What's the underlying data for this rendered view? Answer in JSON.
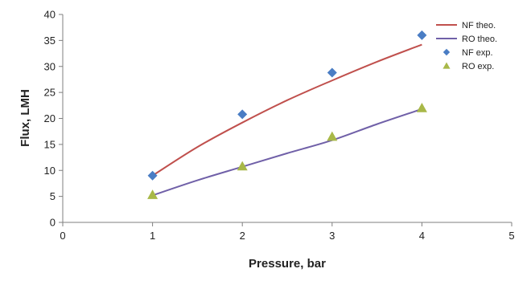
{
  "chart_data": {
    "type": "scatter",
    "xlabel": "Pressure, bar",
    "ylabel": "Flux, LMH",
    "xlim": [
      0,
      5
    ],
    "ylim": [
      0,
      40
    ],
    "xticks": [
      0,
      1,
      2,
      3,
      4,
      5
    ],
    "yticks": [
      0,
      5,
      10,
      15,
      20,
      25,
      30,
      35,
      40
    ],
    "grid": false,
    "legend_position": "top-right",
    "series": [
      {
        "name": "NF theo.",
        "kind": "line",
        "color": "#c0504d",
        "x": [
          1,
          1.5,
          2,
          2.5,
          3,
          3.5,
          4
        ],
        "y": [
          9,
          14.5,
          19.2,
          23.5,
          27.3,
          30.9,
          34.2
        ]
      },
      {
        "name": "RO theo.",
        "kind": "line",
        "color": "#7060a8",
        "x": [
          1,
          1.5,
          2,
          2.5,
          3,
          3.5,
          4
        ],
        "y": [
          5.2,
          8.1,
          10.7,
          13.3,
          15.8,
          18.9,
          21.8
        ]
      },
      {
        "name": "NF exp.",
        "kind": "marker",
        "marker": "diamond",
        "color": "#4a7dc4",
        "x": [
          1,
          2,
          3,
          4
        ],
        "y": [
          9,
          20.8,
          28.8,
          36
        ]
      },
      {
        "name": "RO exp.",
        "kind": "marker",
        "marker": "triangle",
        "color": "#a8b848",
        "x": [
          1,
          2,
          3,
          4
        ],
        "y": [
          5.3,
          10.8,
          16.5,
          22
        ]
      }
    ]
  }
}
